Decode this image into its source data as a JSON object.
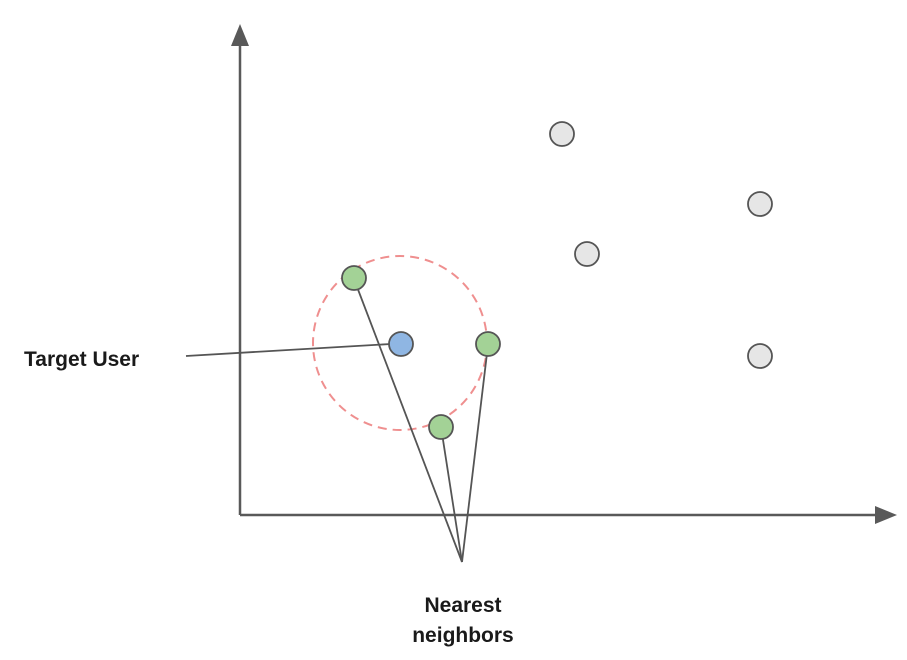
{
  "labels": {
    "target_user": "Target User",
    "nearest_line1": "Nearest",
    "nearest_line2": "neighbors"
  },
  "colors": {
    "axis": "#595959",
    "target_fill": "#8fb6e3",
    "neighbor_fill": "#a3d296",
    "other_fill": "#e6e6e6",
    "point_stroke": "#555555",
    "radius_circle": "#ef8f8f",
    "connector": "#555555"
  },
  "points": [
    {
      "role": "target"
    },
    {
      "role": "neighbor"
    },
    {
      "role": "neighbor"
    },
    {
      "role": "neighbor"
    },
    {
      "role": "other"
    },
    {
      "role": "other"
    },
    {
      "role": "other"
    },
    {
      "role": "other"
    }
  ]
}
